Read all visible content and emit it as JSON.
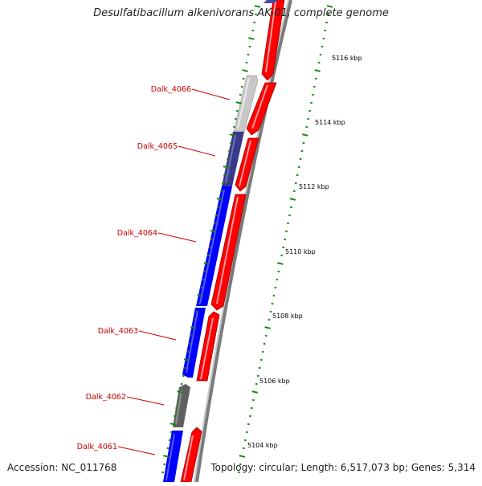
{
  "title": "Desulfatibacillum alkenivorans AK-01, complete genome",
  "accession": "Accession: NC_011768",
  "genome_info": "Topology: circular; Length: 6,517,073 bp; Genes: 5,314",
  "colors": {
    "forward_strand": "#ff0000",
    "reverse_strand_blue": "#0000ff",
    "reverse_strand_navy": "#3a3a8c",
    "reverse_strand_lightgray": "#c8c8c8",
    "reverse_strand_darkgray": "#606060",
    "backbone": "#808080",
    "tick": "#0a8a0a",
    "gene_label": "#cc0000"
  },
  "gene_labels": [
    {
      "name": "Dalk_4066"
    },
    {
      "name": "Dalk_4065"
    },
    {
      "name": "Dalk_4064"
    },
    {
      "name": "Dalk_4063"
    },
    {
      "name": "Dalk_4062"
    },
    {
      "name": "Dalk_4061"
    }
  ],
  "scale_ticks": [
    {
      "label": "5116 kbp"
    },
    {
      "label": "5114 kbp"
    },
    {
      "label": "5112 kbp"
    },
    {
      "label": "5110 kbp"
    },
    {
      "label": "5108 kbp"
    },
    {
      "label": "5106 kbp"
    },
    {
      "label": "5104 kbp"
    }
  ]
}
